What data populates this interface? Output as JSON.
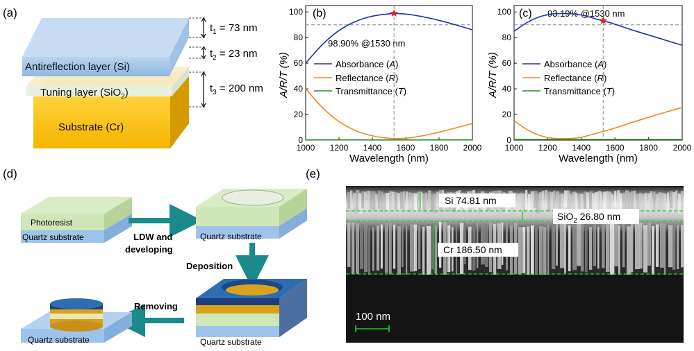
{
  "panel_a": {
    "label": "(a)",
    "t1": {
      "sym": "t",
      "sub": "1",
      "val": " = 73 nm"
    },
    "t2": {
      "sym": "t",
      "sub": "2",
      "val": " = 23 nm"
    },
    "t3": {
      "sym": "t",
      "sub": "3",
      "val": " = 200 nm"
    },
    "antireflection": "Antireflection layer (Si)",
    "tuning_pre": "Tuning layer (SiO",
    "tuning_sub": "2",
    "tuning_post": ")",
    "substrate": "Substrate (Cr)"
  },
  "panel_b": {
    "label": "(b)",
    "annotation": "98.90% @1530 nm",
    "legend": [
      "Absorbance (",
      "A",
      ")",
      "Reflectance (",
      "R",
      ")",
      "Transmittance (",
      "T",
      ")"
    ]
  },
  "panel_c": {
    "label": "(c)",
    "annotation": "93.19% @1530 nm"
  },
  "axes": {
    "xlabel": "Wavelength (nm)",
    "ylabel": "A/R/T (%)",
    "xticks": [
      "1000",
      "1200",
      "1400",
      "1600",
      "1800",
      "2000"
    ],
    "yticks": [
      "0",
      "20",
      "40",
      "60",
      "80",
      "100"
    ]
  },
  "chart_data": [
    {
      "type": "line",
      "panel": "(b)",
      "xlabel": "Wavelength (nm)",
      "ylabel": "A/R/T (%)",
      "xlim": [
        1000,
        2000
      ],
      "ylim": [
        0,
        105
      ],
      "x": [
        1000,
        1100,
        1200,
        1300,
        1400,
        1500,
        1530,
        1600,
        1700,
        1800,
        1900,
        2000
      ],
      "series": [
        {
          "name": "Absorbance (A)",
          "color": "#1f2fa8",
          "values": [
            60,
            75,
            86,
            93,
            97,
            98.6,
            98.9,
            98.5,
            96.5,
            93.5,
            90,
            86
          ]
        },
        {
          "name": "Reflectance (R)",
          "color": "#f08a1e",
          "values": [
            40,
            25,
            14,
            7,
            3,
            1.4,
            1.1,
            1.3,
            3.2,
            6.2,
            9.5,
            13
          ]
        },
        {
          "name": "Transmittance (T)",
          "color": "#2a8a2a",
          "values": [
            0.2,
            0.2,
            0.2,
            0.2,
            0.2,
            0.2,
            0.2,
            0.2,
            0.2,
            0.2,
            0.2,
            0.2
          ]
        }
      ],
      "reference": {
        "x": 1530,
        "y": 90,
        "marker_y": 98.9
      }
    },
    {
      "type": "line",
      "panel": "(c)",
      "xlabel": "Wavelength (nm)",
      "ylabel": "A/R/T (%)",
      "xlim": [
        1000,
        2000
      ],
      "ylim": [
        0,
        105
      ],
      "x": [
        1000,
        1100,
        1200,
        1300,
        1400,
        1500,
        1530,
        1600,
        1700,
        1800,
        1900,
        2000
      ],
      "series": [
        {
          "name": "Absorbance (A)",
          "color": "#1f2fa8",
          "values": [
            85,
            94,
            98.3,
            99,
            98,
            94,
            93.19,
            90.5,
            86,
            82,
            78,
            74
          ]
        },
        {
          "name": "Reflectance (R)",
          "color": "#f08a1e",
          "values": [
            15,
            6,
            1.6,
            0.9,
            1.9,
            5.8,
            6.8,
            9.3,
            13.8,
            17.8,
            21.8,
            25.5
          ]
        },
        {
          "name": "Transmittance (T)",
          "color": "#2a8a2a",
          "values": [
            0.5,
            0.5,
            0.5,
            0.5,
            0.5,
            0.5,
            0.5,
            0.5,
            0.5,
            0.5,
            0.5,
            0.5
          ]
        }
      ],
      "reference": {
        "x": 1530,
        "y": 90,
        "marker_y": 93.19
      }
    }
  ],
  "panel_d": {
    "label": "(d)",
    "photoresist": "Photoresist",
    "quartz": "Quartz substrate",
    "ldw_line1": "LDW and",
    "ldw_line2": "developing",
    "deposition": "Deposition",
    "removing": "Removing"
  },
  "panel_e": {
    "label": "(e)",
    "si": "Si 74.81 nm",
    "sio2_pre": "SiO",
    "sio2_sub": "2",
    "sio2_post": " 26.80 nm",
    "cr": "Cr 186.50 nm",
    "scale": "100 nm"
  },
  "colors": {
    "absorbance": "#1f2fa8",
    "reflectance": "#f08a1e",
    "transmittance": "#2a8a2a",
    "star": "#e0202a",
    "arrow": "#1a8a8a",
    "measure": "#22cc22"
  }
}
